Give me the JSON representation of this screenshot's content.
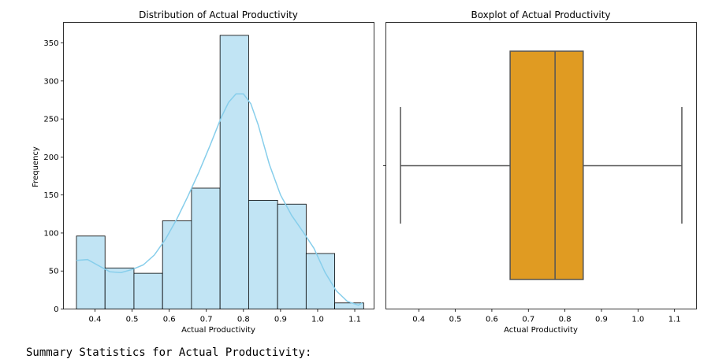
{
  "chart_data": [
    {
      "type": "histogram",
      "title": "Distribution of Actual Productivity",
      "xlabel": "Actual Productivity",
      "ylabel": "Frequency",
      "xlim": [
        0.315,
        1.152
      ],
      "ylim": [
        0,
        377
      ],
      "xticks": [
        0.4,
        0.5,
        0.6,
        0.7,
        0.8,
        0.9,
        1.0,
        1.1
      ],
      "xtick_labels": [
        "0.4",
        "0.5",
        "0.6",
        "0.7",
        "0.8",
        "0.9",
        "1.0",
        "1.1"
      ],
      "yticks": [
        0,
        50,
        100,
        150,
        200,
        250,
        300,
        350
      ],
      "ytick_labels": [
        "0",
        "50",
        "100",
        "150",
        "200",
        "250",
        "300",
        "350"
      ],
      "bins": [
        {
          "x0": 0.35,
          "x1": 0.427,
          "count": 96
        },
        {
          "x0": 0.427,
          "x1": 0.505,
          "count": 54
        },
        {
          "x0": 0.505,
          "x1": 0.582,
          "count": 47
        },
        {
          "x0": 0.582,
          "x1": 0.66,
          "count": 116
        },
        {
          "x0": 0.66,
          "x1": 0.737,
          "count": 159
        },
        {
          "x0": 0.737,
          "x1": 0.814,
          "count": 360
        },
        {
          "x0": 0.814,
          "x1": 0.892,
          "count": 143
        },
        {
          "x0": 0.892,
          "x1": 0.969,
          "count": 138
        },
        {
          "x0": 0.969,
          "x1": 1.046,
          "count": 73
        },
        {
          "x0": 1.046,
          "x1": 1.124,
          "count": 8
        }
      ],
      "kde": {
        "x": [
          0.35,
          0.38,
          0.41,
          0.44,
          0.47,
          0.5,
          0.53,
          0.56,
          0.59,
          0.62,
          0.65,
          0.68,
          0.71,
          0.74,
          0.76,
          0.78,
          0.8,
          0.82,
          0.84,
          0.87,
          0.9,
          0.93,
          0.96,
          0.99,
          1.02,
          1.05,
          1.08,
          1.11,
          1.12
        ],
        "y": [
          64,
          65,
          57,
          49,
          48,
          52,
          58,
          71,
          92,
          118,
          148,
          180,
          215,
          252,
          272,
          283,
          283,
          270,
          242,
          190,
          150,
          123,
          102,
          80,
          48,
          24,
          10,
          5,
          8
        ]
      },
      "colors": {
        "bar": "#c1e4f4",
        "bar_edge": "#000000",
        "kde": "#87ceeb"
      }
    },
    {
      "type": "boxplot",
      "title": "Boxplot of Actual Productivity",
      "xlabel": "Actual Productivity",
      "xlim": [
        0.31,
        1.16
      ],
      "xticks": [
        0.4,
        0.5,
        0.6,
        0.7,
        0.8,
        0.9,
        1.0,
        1.1
      ],
      "xtick_labels": [
        "0.4",
        "0.5",
        "0.6",
        "0.7",
        "0.8",
        "0.9",
        "1.0",
        "1.1"
      ],
      "whisker_low": 0.35,
      "q1": 0.65,
      "median": 0.773,
      "q3": 0.85,
      "whisker_high": 1.12,
      "colors": {
        "box": "#e09b22",
        "line": "#555555"
      }
    }
  ],
  "output": {
    "text": "Summary Statistics for Actual Productivity:"
  }
}
